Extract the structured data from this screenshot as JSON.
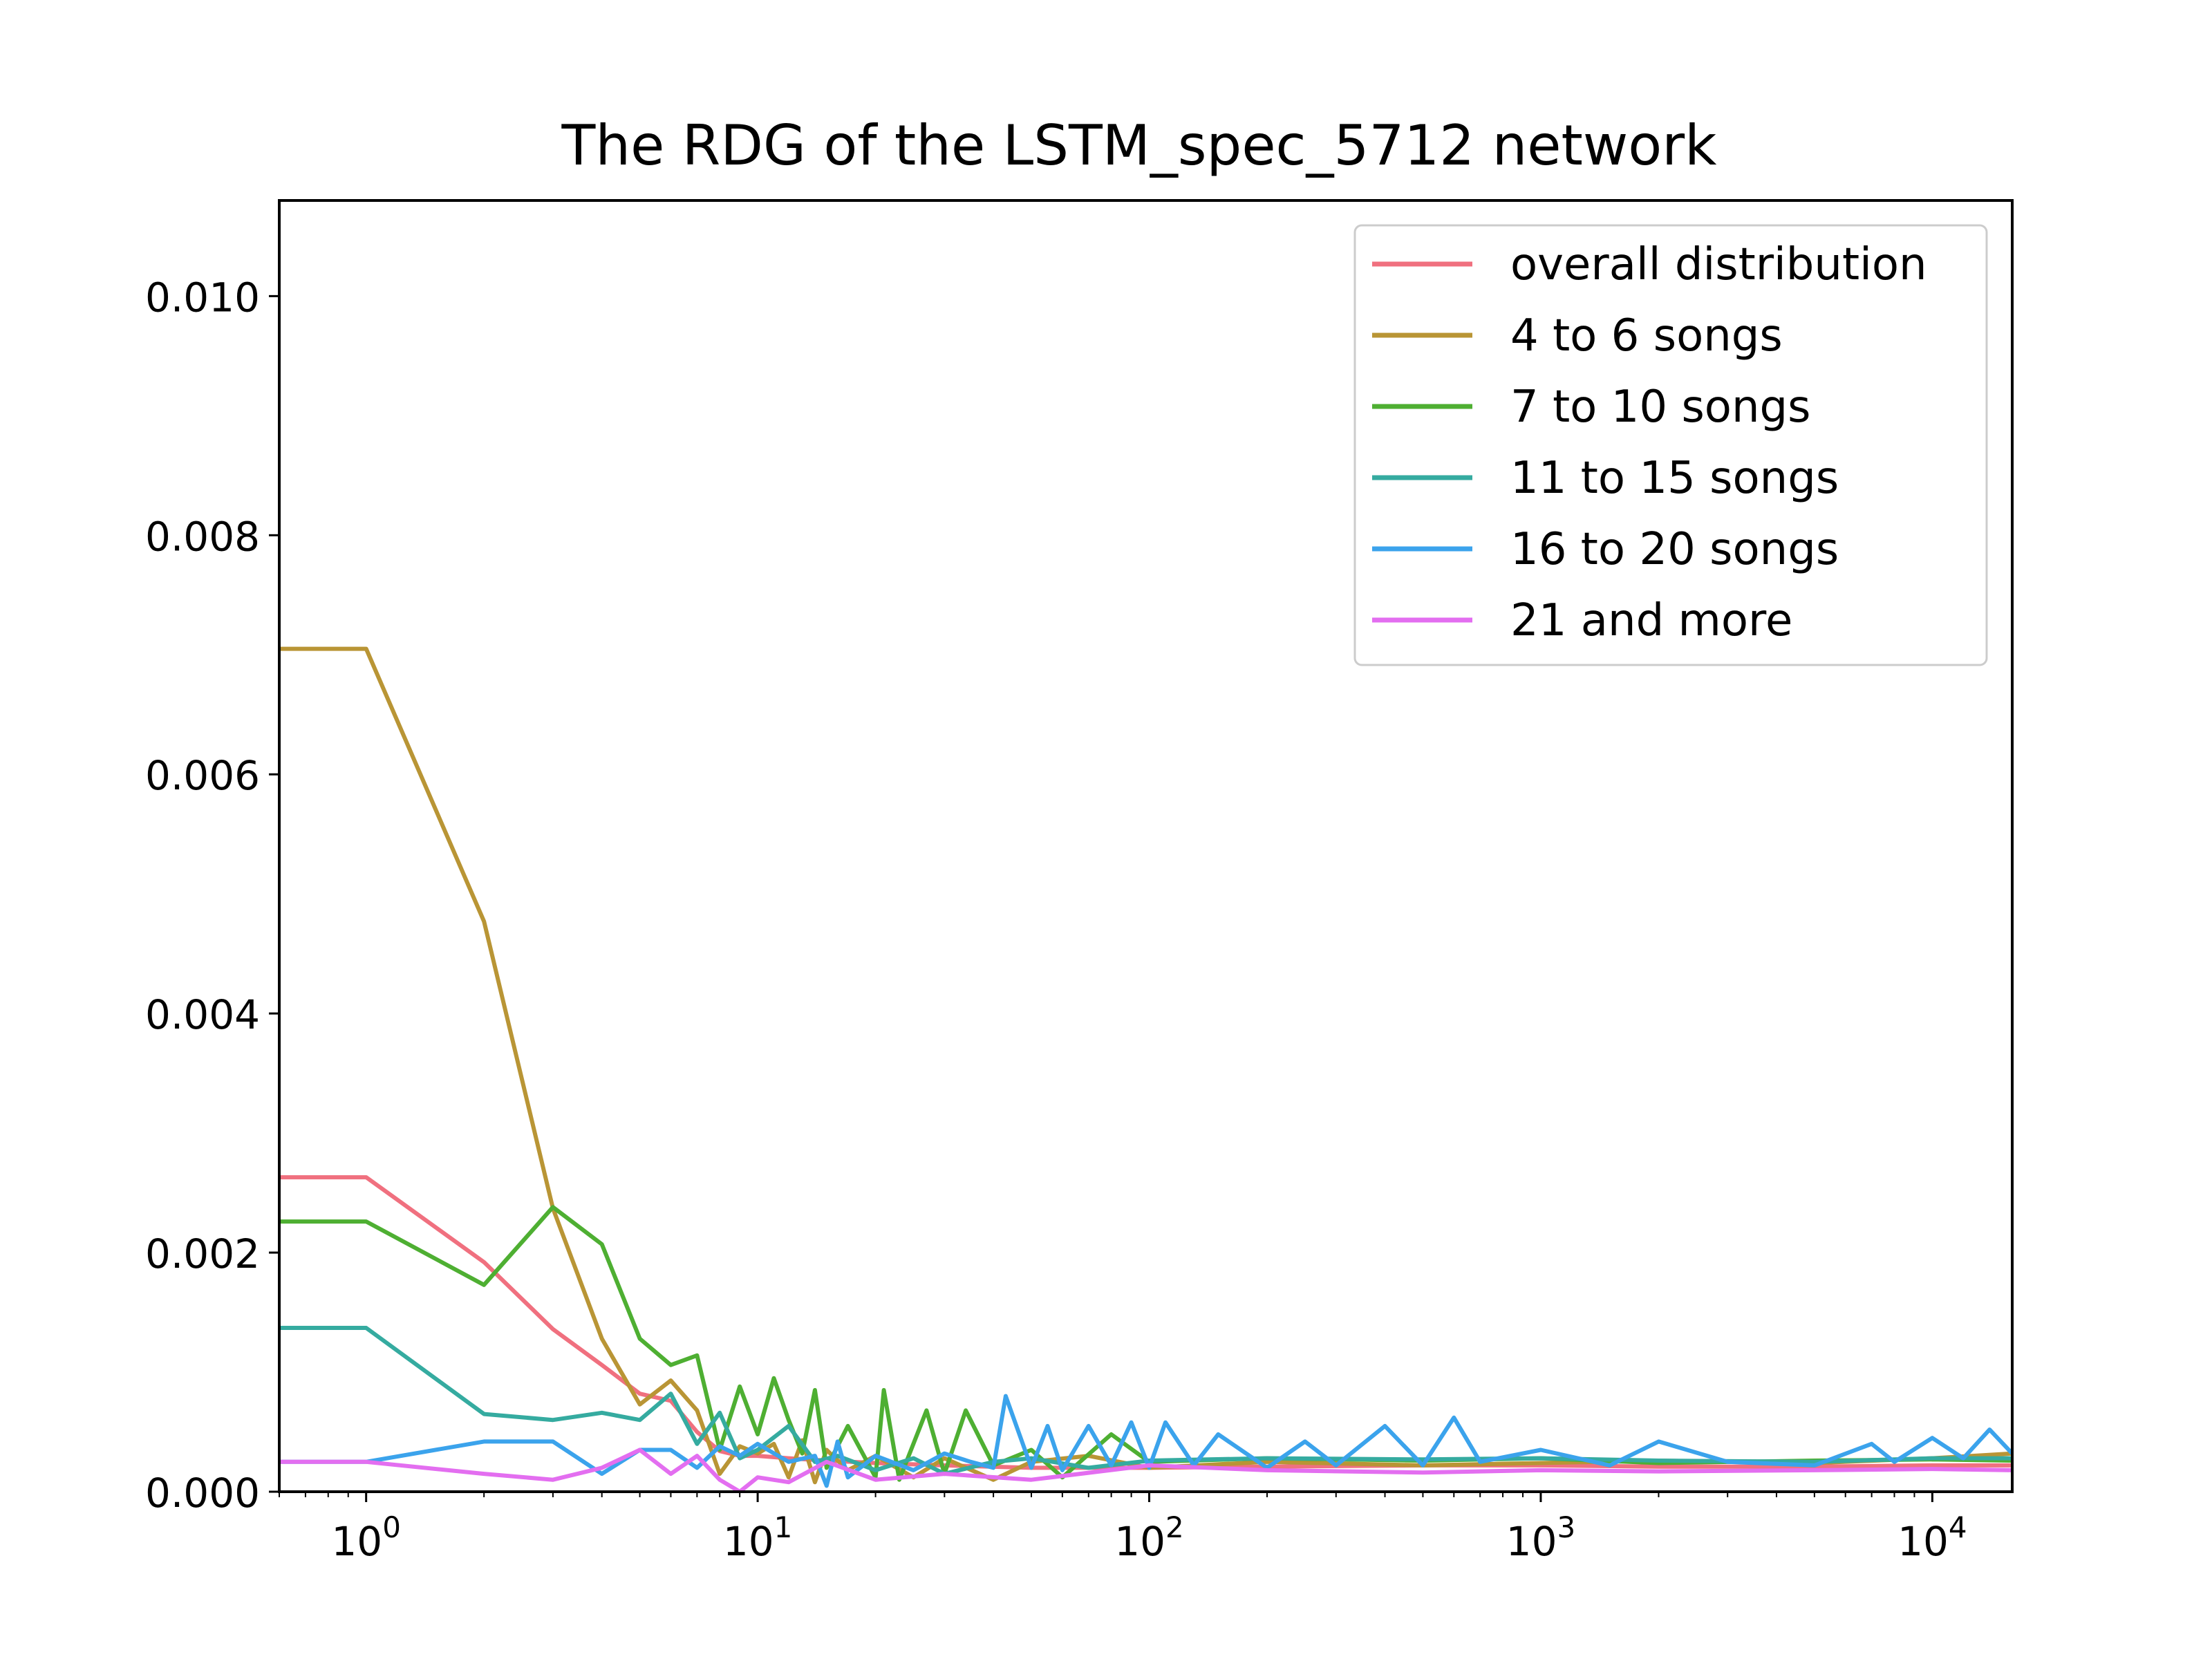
{
  "chart_data": {
    "type": "line",
    "title": "The RDG of the LSTM_spec_5712 network",
    "xlabel": "",
    "ylabel": "",
    "x_scale": "log",
    "xlim": [
      0.6,
      16000
    ],
    "ylim": [
      0,
      0.0108
    ],
    "x_ticks": [
      {
        "value": 1,
        "base": "10",
        "exp": "0"
      },
      {
        "value": 10,
        "base": "10",
        "exp": "1"
      },
      {
        "value": 100,
        "base": "10",
        "exp": "2"
      },
      {
        "value": 1000,
        "base": "10",
        "exp": "3"
      },
      {
        "value": 10000,
        "base": "10",
        "exp": "4"
      }
    ],
    "y_ticks": [
      {
        "value": 0,
        "label": "0.000"
      },
      {
        "value": 0.002,
        "label": "0.002"
      },
      {
        "value": 0.004,
        "label": "0.004"
      },
      {
        "value": 0.006,
        "label": "0.006"
      },
      {
        "value": 0.008,
        "label": "0.008"
      },
      {
        "value": 0.01,
        "label": "0.010"
      }
    ],
    "grid": false,
    "legend_position": "top-right",
    "series": [
      {
        "name": "overall distribution",
        "color": "#f0707f",
        "x": [
          0.6,
          1,
          2,
          3,
          4,
          5,
          6,
          7,
          8,
          9,
          10,
          12,
          15,
          20,
          30,
          50,
          100,
          200,
          500,
          1000,
          2000,
          5000,
          10000,
          16000
        ],
        "y": [
          0.00263,
          0.00263,
          0.00192,
          0.00136,
          0.00106,
          0.00082,
          0.00076,
          0.0005,
          0.00034,
          0.0003,
          0.0003,
          0.00028,
          0.00026,
          0.00024,
          0.00022,
          0.0002,
          0.0002,
          0.00021,
          0.00022,
          0.00022,
          0.00021,
          0.00021,
          0.00022,
          0.00022
        ]
      },
      {
        "name": "4 to 6 songs",
        "color": "#b99535",
        "x": [
          0.6,
          1,
          2,
          3,
          4,
          5,
          6,
          7,
          8,
          9,
          10,
          11,
          12,
          13,
          14,
          15,
          17,
          20,
          25,
          30,
          40,
          50,
          70,
          100,
          200,
          500,
          1000,
          2000,
          5000,
          10000,
          16000
        ],
        "y": [
          0.00705,
          0.00705,
          0.00477,
          0.00237,
          0.00128,
          0.00073,
          0.00093,
          0.00068,
          0.00015,
          0.00038,
          0.00032,
          0.0004,
          0.00012,
          0.00043,
          8e-05,
          0.00035,
          0.00018,
          0.0003,
          0.00012,
          0.00028,
          0.0001,
          0.00025,
          0.0003,
          0.0002,
          0.00025,
          0.00022,
          0.00024,
          0.00026,
          0.00024,
          0.00028,
          0.00032
        ]
      },
      {
        "name": "7 to 10 songs",
        "color": "#4eaf32",
        "x": [
          0.6,
          1,
          2,
          3,
          4,
          5,
          6,
          7,
          8,
          9,
          10,
          11,
          12,
          13,
          14,
          15,
          17,
          20,
          21,
          23,
          27,
          30,
          34,
          40,
          50,
          60,
          80,
          100,
          200,
          500,
          1000,
          2000,
          5000,
          10000,
          16000
        ],
        "y": [
          0.00226,
          0.00226,
          0.00173,
          0.00238,
          0.00207,
          0.00128,
          0.00106,
          0.00114,
          0.00035,
          0.00088,
          0.00048,
          0.00095,
          0.0006,
          0.00032,
          0.00085,
          0.0002,
          0.00055,
          0.00012,
          0.00085,
          0.0001,
          0.00068,
          0.00015,
          0.00068,
          0.00022,
          0.00035,
          0.00012,
          0.00048,
          0.00025,
          0.00028,
          0.00026,
          0.00028,
          0.00024,
          0.00026,
          0.00027,
          0.00026
        ]
      },
      {
        "name": "11 to 15 songs",
        "color": "#35aba0",
        "x": [
          0.6,
          1,
          2,
          3,
          4,
          5,
          6,
          7,
          8,
          9,
          10,
          12,
          14,
          16,
          20,
          25,
          30,
          40,
          50,
          70,
          100,
          200,
          500,
          1000,
          2000,
          5000,
          10000,
          16000
        ],
        "y": [
          0.00137,
          0.00137,
          0.00065,
          0.0006,
          0.00066,
          0.0006,
          0.00082,
          0.0004,
          0.00066,
          0.00028,
          0.00035,
          0.00055,
          0.00025,
          0.0003,
          0.00018,
          0.00028,
          0.00015,
          0.00025,
          0.00028,
          0.0002,
          0.00026,
          0.00028,
          0.00027,
          0.00028,
          0.00026,
          0.00025,
          0.00028,
          0.00028
        ]
      },
      {
        "name": "16 to 20 songs",
        "color": "#3ba3ec",
        "x": [
          0.6,
          1,
          2,
          3,
          4,
          5,
          6,
          7,
          8,
          9,
          10,
          12,
          14,
          15,
          16,
          17,
          20,
          25,
          30,
          35,
          40,
          43,
          50,
          55,
          60,
          70,
          80,
          90,
          100,
          110,
          130,
          150,
          200,
          250,
          300,
          400,
          500,
          600,
          700,
          1000,
          1500,
          2000,
          3000,
          5000,
          7000,
          8000,
          10000,
          12000,
          14000,
          16000
        ],
        "y": [
          0.00025,
          0.00025,
          0.00042,
          0.00042,
          0.00015,
          0.00035,
          0.00035,
          0.0002,
          0.00038,
          0.0003,
          0.0004,
          0.00025,
          0.0003,
          5e-05,
          0.00042,
          0.00012,
          0.0003,
          0.00018,
          0.00032,
          0.00025,
          0.0002,
          0.0008,
          0.0002,
          0.00055,
          0.00018,
          0.00055,
          0.00022,
          0.00058,
          0.0002,
          0.00058,
          0.00022,
          0.00048,
          0.0002,
          0.00042,
          0.00022,
          0.00055,
          0.00022,
          0.00062,
          0.00025,
          0.00035,
          0.00022,
          0.00042,
          0.00025,
          0.00022,
          0.0004,
          0.00025,
          0.00045,
          0.00028,
          0.00052,
          0.00032
        ]
      },
      {
        "name": "21 and more",
        "color": "#e36ef0",
        "x": [
          0.6,
          1,
          2,
          3,
          4,
          5,
          6,
          7,
          8,
          9,
          10,
          12,
          15,
          20,
          30,
          50,
          100,
          200,
          500,
          1000,
          2000,
          5000,
          10000,
          16000
        ],
        "y": [
          0.00025,
          0.00025,
          0.00015,
          0.0001,
          0.0002,
          0.00035,
          0.00015,
          0.0003,
          0.0001,
          0.0,
          0.00012,
          8e-05,
          0.00025,
          0.0001,
          0.00015,
          0.0001,
          0.00022,
          0.00018,
          0.00016,
          0.00018,
          0.00017,
          0.00018,
          0.00019,
          0.00018
        ]
      }
    ]
  }
}
